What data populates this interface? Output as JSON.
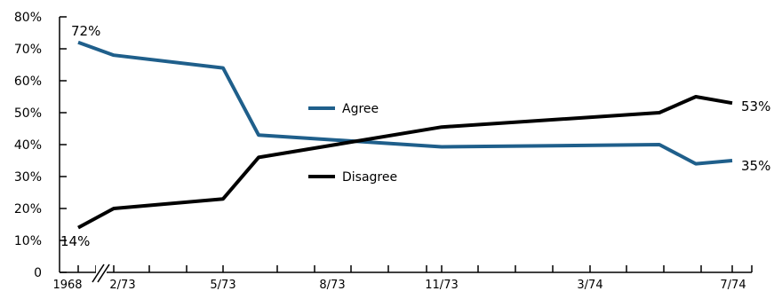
{
  "chart_data": {
    "type": "line",
    "title": "",
    "xlabel": "",
    "ylabel": "",
    "ylim": [
      0,
      80
    ],
    "y_ticks": [
      "0",
      "10%",
      "20%",
      "30%",
      "40%",
      "50%",
      "60%",
      "70%",
      "80%"
    ],
    "x_tick_labels": [
      "1968",
      "2/73",
      "5/73",
      "8/73",
      "11/73",
      "3/74",
      "7/74"
    ],
    "axis_break": "between 1968 and 2/73",
    "grid": false,
    "legend_placement": "center",
    "series": [
      {
        "name": "Agree",
        "color": "#1f5f8b",
        "points": [
          {
            "x": "1968",
            "y": 72
          },
          {
            "x": "2/73",
            "y": 68
          },
          {
            "x": "5/73",
            "y": 64
          },
          {
            "x": "6/73",
            "y": 43
          },
          {
            "x": "11/73",
            "y": 39.3
          },
          {
            "x": "5/74",
            "y": 40
          },
          {
            "x": "6/74",
            "y": 34
          },
          {
            "x": "7/74",
            "y": 35
          }
        ],
        "start_label": "72%",
        "end_label": "35%"
      },
      {
        "name": "Disagree",
        "color": "#000000",
        "points": [
          {
            "x": "1968",
            "y": 14
          },
          {
            "x": "2/73",
            "y": 20
          },
          {
            "x": "5/73",
            "y": 23
          },
          {
            "x": "6/73",
            "y": 36
          },
          {
            "x": "11/73",
            "y": 45.5
          },
          {
            "x": "5/74",
            "y": 50
          },
          {
            "x": "6/74",
            "y": 55
          },
          {
            "x": "7/74",
            "y": 53
          }
        ],
        "start_label": "14%",
        "end_label": "53%"
      }
    ]
  }
}
